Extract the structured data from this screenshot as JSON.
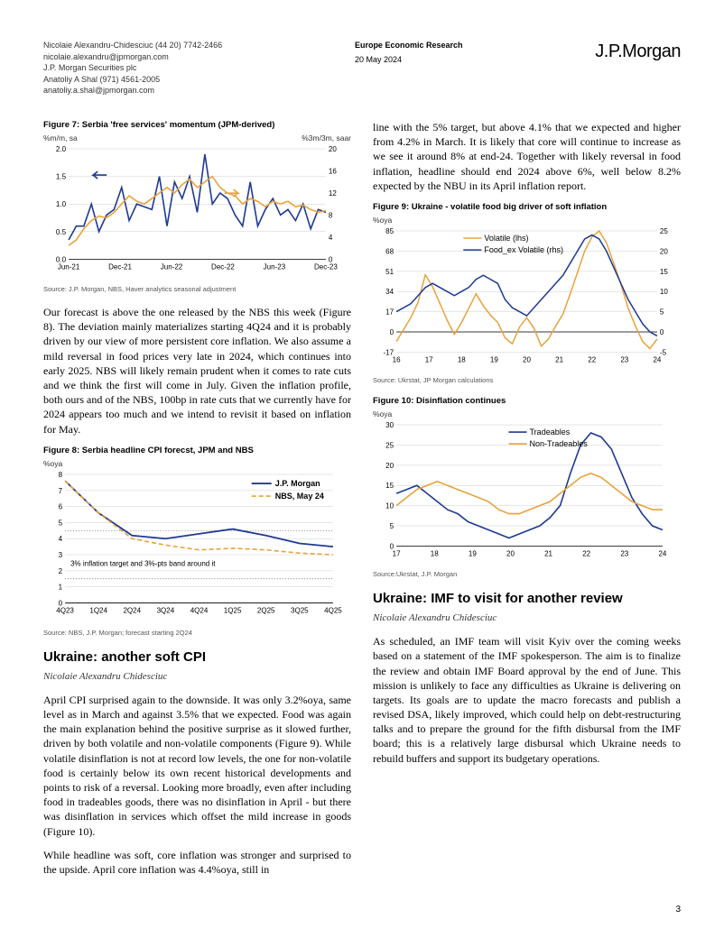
{
  "header": {
    "analysts": [
      {
        "name": "Nicolaie Alexandru-Chidesciuc  (44 20) 7742-2466",
        "email": "nicolaie.alexandru@jpmorgan.com",
        "firm": "J.P. Morgan Securities plc"
      },
      {
        "name": "Anatoliy A Shal  (971) 4561-2005",
        "email": "anatoliy.a.shal@jpmorgan.com"
      }
    ],
    "dept": "Europe Economic Research",
    "date": "20 May 2024",
    "logo": "J.P.Morgan"
  },
  "fig7": {
    "title": "Figure 7: Serbia 'free services' momentum (JPM-derived)",
    "ylabel_left": "%m/m, sa",
    "ylabel_right": "%3m/3m, saar",
    "source": "Source: J.P. Morgan, NBS, Haver analytics seasonal adjustment",
    "xlabels": [
      "Jun-21",
      "Dec-21",
      "Jun-22",
      "Dec-22",
      "Jun-23",
      "Dec-23"
    ],
    "left_ticks": [
      0.0,
      0.5,
      1.0,
      1.5,
      2.0
    ],
    "right_ticks": [
      0,
      4,
      8,
      12,
      16,
      20
    ],
    "colors": {
      "line1": "#1f3a93",
      "line2": "#e8a33d",
      "grid": "#cfcfcf",
      "axis": "#000"
    },
    "series1_mm": [
      0.35,
      0.6,
      0.6,
      1.0,
      0.5,
      0.8,
      0.9,
      1.3,
      0.7,
      1.0,
      0.95,
      0.9,
      1.5,
      0.6,
      1.4,
      1.1,
      1.5,
      0.85,
      1.9,
      1.0,
      1.2,
      1.1,
      0.8,
      0.6,
      1.4,
      0.6,
      0.9,
      1.1,
      0.8,
      0.9,
      0.7,
      1.0,
      0.55,
      0.9,
      0.85
    ],
    "series2_3m3m": [
      2.5,
      3.5,
      5.5,
      7,
      7.8,
      7.5,
      8.5,
      10,
      11.5,
      10.5,
      10,
      11,
      12,
      13,
      12,
      13.5,
      14.5,
      13,
      14,
      15,
      13,
      12,
      11.5,
      10,
      11,
      10.5,
      9.5,
      10.5,
      10,
      10.5,
      9.5,
      9.8,
      9,
      8.5,
      8.8
    ]
  },
  "para1": "Our forecast is above the one released by the NBS this week (Figure 8). The deviation mainly materializes starting 4Q24 and it is probably driven by our view of more persistent core inflation. We also assume a mild reversal in food prices very late in 2024, which continues into early 2025. NBS will likely remain prudent when it comes to rate cuts and we think the first will come in July. Given the inflation profile, both ours and of the NBS, 100bp in rate cuts that we currently have for 2024 appears too much and we intend to revisit it based on inflation for May.",
  "fig8": {
    "title": "Figure 8: Serbia headline CPI forecst, JPM and NBS",
    "ylabel": "%oya",
    "source": "Source: NBS, J.P. Morgan; forecast starting 2Q24",
    "legend1": "J.P. Morgan",
    "legend2": "NBS, May 24",
    "band_label": "3% inflation target and 3%-pts band around it",
    "xlabels": [
      "4Q23",
      "1Q24",
      "2Q24",
      "3Q24",
      "4Q24",
      "1Q25",
      "2Q25",
      "3Q25",
      "4Q25"
    ],
    "yticks": [
      0,
      1,
      2,
      3,
      4,
      5,
      6,
      7,
      8
    ],
    "colors": {
      "jpm": "#1f3a93",
      "nbs": "#e8a33d",
      "band": "#555",
      "grid": "#cfcfcf"
    },
    "jpm": [
      7.6,
      5.6,
      4.2,
      4.0,
      4.3,
      4.6,
      4.2,
      3.7,
      3.5
    ],
    "nbs": [
      7.6,
      5.6,
      4.0,
      3.6,
      3.3,
      3.4,
      3.3,
      3.1,
      3.0
    ]
  },
  "sec1_title": "Ukraine: another soft CPI",
  "sec1_author": "Nicolaie Alexandru Chidesciuc",
  "sec1_p1": "April CPI surprised again to the downside. It was only 3.2%oya, same level as in March and against 3.5% that we expected. Food was again the main explanation behind the positive surprise as it slowed further, driven by both volatile and non-volatile components (Figure 9). While volatile disinflation is not at record low levels, the one for non-volatile food is certainly below its own recent historical developments and points to risk of a reversal. Looking more broadly, even after including food in tradeables goods, there was no disinflation in April - but there was disinflation in services which offset the mild increase in goods (Figure 10).",
  "sec1_p2": "While headline was soft, core inflation was stronger and surprised to the upside. April core inflation was 4.4%oya, still in",
  "right_p1": "line with the 5% target, but above 4.1% that we expected and higher from 4.2% in March. It is likely that core will continue to increase as we see it around 8% at end-24. Together with likely reversal in food inflation, headline should end 2024 above 6%, well below 8.2% expected by the NBU in its April inflation report.",
  "fig9": {
    "title": "Figure 9: Ukraine - volatile food big driver of soft inflation",
    "ylabel": "%oya",
    "source": "Source: Ukrstat, JP Morgan calculations",
    "legend1": "Volatile (lhs)",
    "legend2": "Food_ex Volatile (rhs)",
    "xlabels": [
      "16",
      "17",
      "18",
      "19",
      "20",
      "21",
      "22",
      "23",
      "24"
    ],
    "left_ticks": [
      -17,
      0,
      17,
      34,
      51,
      68,
      85
    ],
    "right_ticks": [
      -5,
      0,
      5,
      10,
      15,
      20,
      25
    ],
    "colors": {
      "volatile": "#e8a33d",
      "food_ex": "#1f3a93",
      "grid": "#cfcfcf"
    },
    "volatile": [
      -8,
      2,
      12,
      25,
      48,
      38,
      24,
      10,
      -2,
      8,
      20,
      32,
      22,
      14,
      8,
      -5,
      -10,
      4,
      12,
      3,
      -12,
      -6,
      5,
      15,
      32,
      50,
      68,
      80,
      85,
      75,
      58,
      40,
      20,
      5,
      -8,
      -14,
      -6
    ],
    "food_ex": [
      5,
      6,
      7,
      9,
      11,
      12,
      11,
      10,
      9,
      10,
      11,
      13,
      14,
      13,
      12,
      8,
      6,
      5,
      4,
      6,
      8,
      10,
      12,
      14,
      17,
      20,
      23,
      24,
      23,
      20,
      16,
      12,
      8,
      5,
      2,
      0,
      -1
    ]
  },
  "fig10": {
    "title": "Figure 10: Disinflation continues",
    "ylabel": "%oya",
    "source": "Source:Ukrstat,  J.P. Morgan",
    "legend1": "Tradeables",
    "legend2": "Non-Tradeables",
    "xlabels": [
      "17",
      "18",
      "19",
      "20",
      "21",
      "22",
      "23",
      "24"
    ],
    "yticks": [
      0,
      5,
      10,
      15,
      20,
      25,
      30
    ],
    "colors": {
      "trade": "#1f3a93",
      "nontrade": "#e8a33d",
      "grid": "#cfcfcf"
    },
    "trade": [
      13,
      14,
      15,
      13,
      11,
      9,
      8,
      6,
      5,
      4,
      3,
      2,
      3,
      4,
      5,
      7,
      10,
      18,
      25,
      28,
      27,
      24,
      18,
      12,
      8,
      5,
      4
    ],
    "nontrade": [
      10,
      12,
      14,
      15,
      16,
      15,
      14,
      13,
      12,
      11,
      9,
      8,
      8,
      9,
      10,
      11,
      13,
      15,
      17,
      18,
      17,
      15,
      13,
      11,
      10,
      9,
      9
    ]
  },
  "sec2_title": "Ukraine: IMF to visit for another review",
  "sec2_author": "Nicolaie Alexandru Chidesciuc",
  "sec2_p1": "As scheduled, an IMF team will visit Kyiv over the coming weeks based on a statement of the IMF spokesperson. The aim is to finalize the review and obtain IMF Board approval by the end of June. This mission is unlikely to face any difficulties as Ukraine is delivering on targets. Its goals are to update the macro forecasts and publish a revised DSA, likely improved, which could help on debt-restructuring talks and to prepare the ground for the fifth disbursal from the IMF board; this is a relatively large disbursal which Ukraine needs to rebuild buffers and support its budgetary operations.",
  "page_num": "3"
}
